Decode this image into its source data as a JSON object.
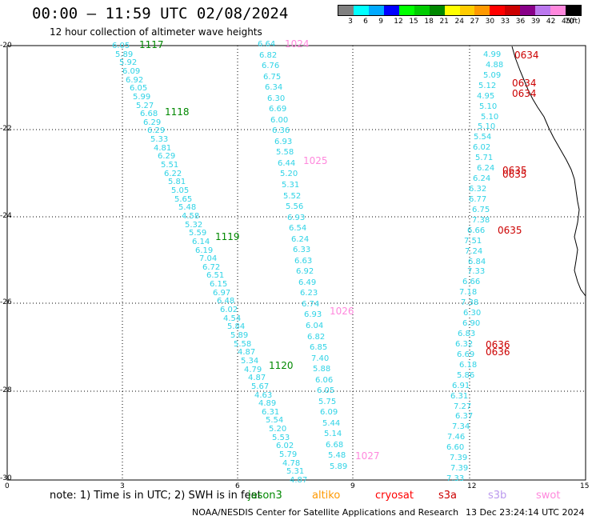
{
  "title": "00:00 – 11:59 UTC 02/08/2024",
  "subtitle": "12 hour collection of altimeter wave heights",
  "colorbar": {
    "colors": [
      "#808080",
      "#00ffff",
      "#00aaff",
      "#0000ff",
      "#00ff00",
      "#00cc00",
      "#008800",
      "#ffff00",
      "#ffcc00",
      "#ff9900",
      "#ff0000",
      "#cc0000",
      "#880088",
      "#bb77ee",
      "#ff88dd",
      "#000000"
    ],
    "labels": [
      "3",
      "6",
      "9",
      "12",
      "15",
      "18",
      "21",
      "24",
      "27",
      "30",
      "33",
      "36",
      "39",
      "42",
      "45",
      "70",
      "(ft)"
    ]
  },
  "axes": {
    "y_labels": [
      "-20",
      "-22",
      "-24",
      "-26",
      "-28",
      "-30"
    ],
    "x_labels": [
      "0",
      "3",
      "6",
      "9",
      "12",
      "15"
    ]
  },
  "note": {
    "prefix": "note:  1) Time is in UTC;  2) SWH is in feet",
    "satellites": [
      {
        "name": "jason3",
        "color": "#008800"
      },
      {
        "name": "altiko",
        "color": "#ff9900"
      },
      {
        "name": "cryosat",
        "color": "#ff0000"
      },
      {
        "name": "s3a",
        "color": "#cc0000"
      },
      {
        "name": "s3b",
        "color": "#bb99ee"
      },
      {
        "name": "swot",
        "color": "#ff88dd"
      }
    ]
  },
  "footer": {
    "credit": "NOAA/NESDIS Center for Satellite Applications and Research",
    "timestamp": "13 Dec 23:24:14 UTC 2024"
  },
  "track_values": {
    "jason3": [
      "6.05",
      "5.89",
      "5.92",
      "6.09",
      "6.92",
      "6.05",
      "5.99",
      "5.27",
      "6.68",
      "6.29",
      "6.29",
      "5.33",
      "4.81",
      "6.29",
      "5.51",
      "6.22",
      "5.81",
      "5.05",
      "5.65",
      "5.48",
      "4.58",
      "5.32",
      "5.59",
      "6.14",
      "6.19",
      "7.04",
      "6.72",
      "6.51",
      "6.15",
      "6.97",
      "6.48",
      "6.02",
      "4.54",
      "5.84",
      "5.89",
      "5.58",
      "4.87",
      "5.34",
      "4.79",
      "4.87",
      "5.67",
      "4.63",
      "4.89",
      "6.31",
      "5.54",
      "5.20",
      "5.53",
      "6.02",
      "5.79",
      "4.78",
      "5.31",
      "4.87"
    ],
    "swot": [
      "6.64",
      "6.82",
      "6.76",
      "6.75",
      "6.34",
      "6.30",
      "6.69",
      "6.00",
      "6.36",
      "6.93",
      "5.58",
      "6.44",
      "5.20",
      "5.31",
      "5.52",
      "5.56",
      "6.93",
      "6.54",
      "6.24",
      "6.33",
      "6.63",
      "6.92",
      "6.49",
      "6.23",
      "6.74",
      "6.93",
      "6.04",
      "6.82",
      "6.85",
      "7.40",
      "5.88",
      "6.06",
      "6.05",
      "5.75",
      "6.09",
      "5.44",
      "5.14",
      "6.68",
      "5.48",
      "5.89"
    ],
    "coast": [
      "4.99",
      "4.88",
      "5.09",
      "5.12",
      "4.95",
      "5.10",
      "5.10",
      "5.10",
      "5.54",
      "6.02",
      "5.71",
      "6.24",
      "6.24",
      "6.32",
      "6.77",
      "6.75",
      "7.38",
      "6.66",
      "7.51",
      "7.24",
      "6.84",
      "7.33",
      "6.66",
      "7.18",
      "7.38",
      "6.30",
      "6.90",
      "6.83",
      "6.32",
      "6.69",
      "6.18",
      "5.86",
      "6.91",
      "6.31",
      "7.27",
      "6.37",
      "7.34",
      "7.46",
      "6.60",
      "7.39",
      "7.39",
      "7.33"
    ]
  },
  "markers": {
    "jason3": [
      "1117",
      "1118",
      "1119",
      "1120"
    ],
    "swot": [
      "1024",
      "1025",
      "1026",
      "1027"
    ],
    "s3a": [
      "0634",
      "0634",
      "0634",
      "0635",
      "0635",
      "0635",
      "0636",
      "0636"
    ]
  }
}
